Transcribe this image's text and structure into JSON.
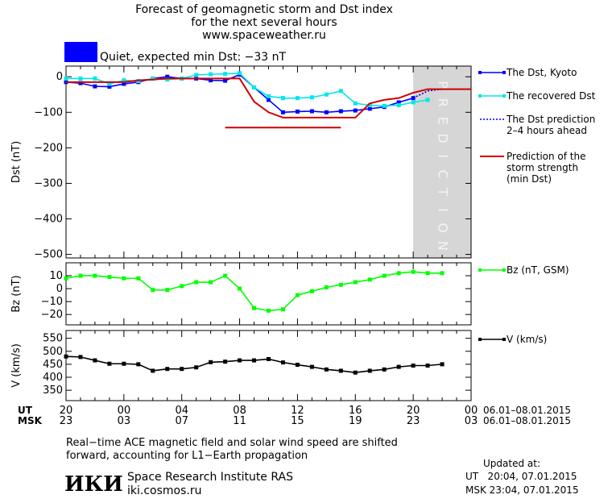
{
  "header": {
    "title_lines": [
      "Forecast of geomagnetic storm and Dst index",
      "for the next several hours",
      "www.spaceweather.ru"
    ],
    "status_text": "Quiet, expected min Dst: −33 nT",
    "status_color": "#0000ff"
  },
  "prediction_label": "PREDICTION",
  "time_axis": {
    "ut_label": "UT",
    "msk_label": "MSK",
    "ut_ticks": [
      "20",
      "00",
      "04",
      "08",
      "12",
      "16",
      "20",
      "00"
    ],
    "msk_ticks": [
      "23",
      "03",
      "07",
      "11",
      "15",
      "19",
      "23",
      "03"
    ],
    "date_range": "06.01–08.01.2015"
  },
  "footer": {
    "note_lines": [
      "Real−time ACE magnetic field and solar wind speed are shifted",
      "forward, accounting for L1−Earth propagation"
    ],
    "logo_text": "ИКИ",
    "institute": "Space Research Institute RAS",
    "site": "iki.cosmos.ru",
    "updated_label": "Updated at:",
    "updated_ut": "UT   20:04, 07.01.2015",
    "updated_msk": "MSK 23:04, 07.01.2015"
  },
  "chart_data": [
    {
      "type": "line",
      "ylabel": "Dst (nT)",
      "ylim": [
        -510,
        30
      ],
      "yticks": [
        0,
        -100,
        -200,
        -300,
        -400,
        -500
      ],
      "ytick_labels": [
        "0",
        "−100",
        "−200",
        "−300",
        "−400",
        "−500"
      ],
      "xlim": [
        0,
        28
      ],
      "prediction_start": 24,
      "series": [
        {
          "name": "The Dst, Kyoto",
          "color": "#0000ff",
          "x": [
            0,
            1,
            2,
            3,
            4,
            5,
            6,
            7,
            8,
            9,
            10,
            11,
            12,
            13,
            14,
            15,
            16,
            17,
            18,
            19,
            20,
            21,
            22,
            23,
            24
          ],
          "y": [
            -15,
            -18,
            -27,
            -28,
            -20,
            -15,
            -5,
            0,
            -5,
            -5,
            -10,
            -11,
            6,
            -30,
            -65,
            -100,
            -98,
            -97,
            -100,
            -97,
            -95,
            -90,
            -85,
            -72,
            -60
          ]
        },
        {
          "name": "The recovered Dst",
          "color": "#00e8e8",
          "x": [
            0,
            1,
            2,
            3,
            4,
            5,
            6,
            7,
            8,
            9,
            10,
            11,
            12,
            13,
            14,
            15,
            16,
            17,
            18,
            19,
            20,
            21,
            22,
            23,
            24,
            25
          ],
          "y": [
            -5,
            -5,
            -5,
            -20,
            -10,
            -12,
            -5,
            -8,
            -5,
            5,
            7,
            8,
            10,
            -30,
            -55,
            -60,
            -60,
            -58,
            -50,
            -40,
            -75,
            -80,
            -82,
            -80,
            -72,
            -65
          ]
        },
        {
          "name": "The Dst prediction\n2–4 hours ahead",
          "color": "#0000ff",
          "x": [
            24,
            25,
            26,
            27,
            28
          ],
          "y": [
            -60,
            -40,
            -35,
            -35,
            -35
          ]
        },
        {
          "name": "Prediction of the\nstorm strength\n(min Dst)",
          "color": "#d00000",
          "x": [
            0,
            1,
            2,
            3,
            4,
            5,
            6,
            7,
            8,
            9,
            10,
            11,
            12,
            13,
            14,
            15,
            16,
            17,
            18,
            19,
            20,
            21,
            22,
            23,
            24,
            25,
            26,
            27,
            28
          ],
          "y": [
            -15,
            -15,
            -15,
            -15,
            -15,
            -10,
            -8,
            -5,
            -5,
            -5,
            -5,
            -5,
            -5,
            -70,
            -100,
            -115,
            -115,
            -115,
            -115,
            -115,
            -115,
            -75,
            -65,
            -60,
            -45,
            -35,
            -35,
            -35,
            -35
          ],
          "min_line": {
            "x": [
              11,
              19
            ],
            "y": -143
          }
        }
      ]
    },
    {
      "type": "line",
      "ylabel": "Bz (nT)",
      "ylim": [
        -28,
        20
      ],
      "yticks": [
        10,
        0,
        -10,
        -20
      ],
      "ytick_labels": [
        "10",
        "0",
        "−10",
        "−20"
      ],
      "xlim": [
        0,
        28
      ],
      "series": [
        {
          "name": "Bz (nT, GSM)",
          "color": "#00ff00",
          "x": [
            0,
            1,
            2,
            3,
            4,
            5,
            6,
            7,
            8,
            9,
            10,
            11,
            12,
            13,
            14,
            15,
            16,
            17,
            18,
            19,
            20,
            21,
            22,
            23,
            24,
            25,
            26
          ],
          "y": [
            8,
            10,
            10,
            9,
            8,
            8,
            -1,
            -1,
            2,
            5,
            5,
            10,
            0,
            -15,
            -17,
            -16,
            -5,
            -2,
            1,
            3,
            5,
            7,
            10,
            12,
            13,
            12,
            12
          ]
        }
      ]
    },
    {
      "type": "line",
      "ylabel": "V (km/s)",
      "ylim": [
        310,
        580
      ],
      "yticks": [
        550,
        500,
        450,
        400,
        350
      ],
      "ytick_labels": [
        "550",
        "500",
        "450",
        "400",
        "350"
      ],
      "xlim": [
        0,
        28
      ],
      "series": [
        {
          "name": "V (km/s)",
          "color": "#000000",
          "x": [
            0,
            1,
            2,
            3,
            4,
            5,
            6,
            7,
            8,
            9,
            10,
            11,
            12,
            13,
            14,
            15,
            16,
            17,
            18,
            19,
            20,
            21,
            22,
            23,
            24,
            25,
            26
          ],
          "y": [
            480,
            478,
            465,
            452,
            452,
            450,
            425,
            432,
            432,
            438,
            458,
            460,
            465,
            465,
            470,
            457,
            448,
            440,
            430,
            425,
            418,
            425,
            430,
            440,
            445,
            445,
            450
          ]
        }
      ]
    }
  ]
}
